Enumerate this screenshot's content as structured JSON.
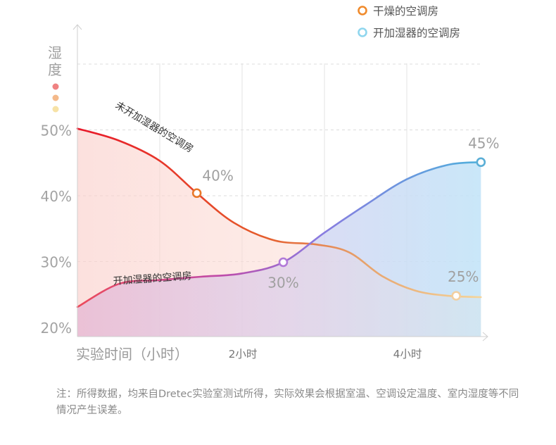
{
  "chart_data": {
    "type": "area",
    "legend": {
      "placement": "top-right",
      "items": [
        {
          "label": "干燥的空调房",
          "color": "#f08a2b"
        },
        {
          "label": "开加湿器的空调房",
          "color": "#8fd6ee"
        }
      ]
    },
    "y_axis": {
      "label": "湿度",
      "ticks": [
        "20%",
        "30%",
        "40%",
        "50%"
      ],
      "tick_values": [
        20,
        30,
        40,
        50
      ],
      "range": [
        20,
        60
      ],
      "level_dots": [
        "#ef8282",
        "#f4b98a",
        "#f7e2a6"
      ]
    },
    "x_axis": {
      "label": "实验时间（小时）",
      "ticks": [
        "2小时",
        "4小时"
      ],
      "tick_values": [
        2,
        4
      ],
      "range": [
        0,
        5
      ]
    },
    "grid": true,
    "series": [
      {
        "name": "未开加湿器的空调房",
        "x": [
          0,
          0.5,
          1,
          1.45,
          1.9,
          2.4,
          2.9,
          3.3,
          3.7,
          4.1,
          4.5,
          4.9
        ],
        "y": [
          50.2,
          48.4,
          45.3,
          40.4,
          35.9,
          33.2,
          32.6,
          31.4,
          27.8,
          25.6,
          24.8,
          24.6
        ],
        "highlights": [
          {
            "x": 1.45,
            "y": 40.4,
            "label": "40%"
          },
          {
            "x": 4.6,
            "y": 24.8,
            "label": "25%"
          }
        ]
      },
      {
        "name": "开加湿器的空调房",
        "x": [
          0,
          0.5,
          1,
          1.5,
          2,
          2.5,
          3,
          3.5,
          4,
          4.5,
          4.9
        ],
        "y": [
          23.1,
          26.6,
          27.2,
          27.7,
          28.2,
          29.9,
          34.4,
          38.6,
          42.5,
          44.7,
          45.1
        ],
        "highlights": [
          {
            "x": 2.5,
            "y": 29.9,
            "label": "30%"
          },
          {
            "x": 4.9,
            "y": 45.1,
            "label": "45%"
          }
        ]
      }
    ]
  },
  "note": "注：所得数据，均来自Dretec实验室测试所得，实际效果会根据室温、空调设定温度、室内湿度等不同情况产生误差。"
}
